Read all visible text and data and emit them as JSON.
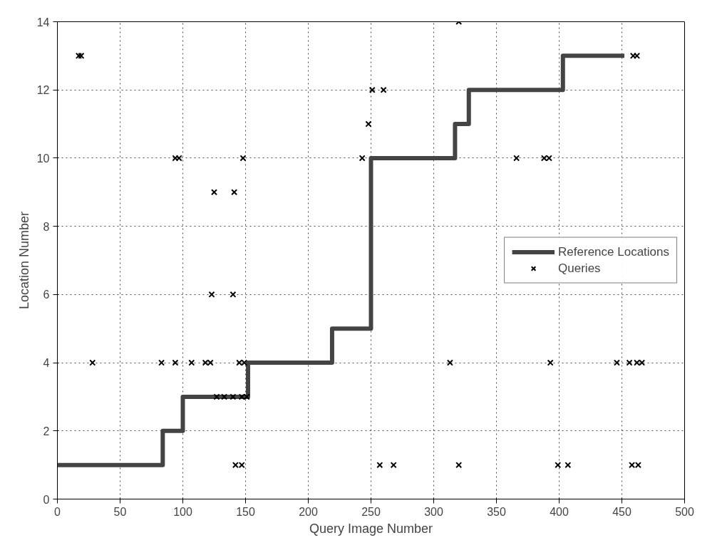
{
  "chart_data": {
    "type": "scatter",
    "xlabel": "Query Image Number",
    "ylabel": "Location Number",
    "xlim": [
      0,
      500
    ],
    "ylim": [
      0,
      14
    ],
    "xticks": [
      0,
      50,
      100,
      150,
      200,
      250,
      300,
      350,
      400,
      450,
      500
    ],
    "yticks": [
      0,
      2,
      4,
      6,
      8,
      10,
      12,
      14
    ],
    "grid": true,
    "legend": "right",
    "series": [
      {
        "name": "Reference Locations",
        "type": "step",
        "color": "#444444",
        "marker": "none",
        "x": [
          0,
          84,
          100,
          152,
          219,
          250,
          317,
          328,
          403,
          452
        ],
        "values": [
          1,
          2,
          3,
          4,
          5,
          10,
          11,
          12,
          13,
          13
        ]
      },
      {
        "name": "Queries",
        "color": "#000000",
        "marker": "cross",
        "x": [
          17,
          19,
          28,
          83,
          94,
          107,
          118,
          122,
          145,
          149,
          313,
          393,
          446,
          456,
          462,
          466,
          127,
          133,
          140,
          147,
          151,
          142,
          147,
          257,
          268,
          320,
          399,
          407,
          458,
          463,
          94,
          97,
          148,
          243,
          366,
          388,
          392,
          125,
          141,
          123,
          140,
          248,
          251,
          260,
          320,
          459,
          462
        ],
        "values": [
          13,
          13,
          4,
          4,
          4,
          4,
          4,
          4,
          4,
          4,
          4,
          4,
          4,
          4,
          4,
          4,
          3,
          3,
          3,
          3,
          3,
          1,
          1,
          1,
          1,
          1,
          1,
          1,
          1,
          1,
          10,
          10,
          10,
          10,
          10,
          10,
          10,
          9,
          9,
          6,
          6,
          11,
          12,
          12,
          14,
          13,
          13
        ]
      }
    ]
  }
}
